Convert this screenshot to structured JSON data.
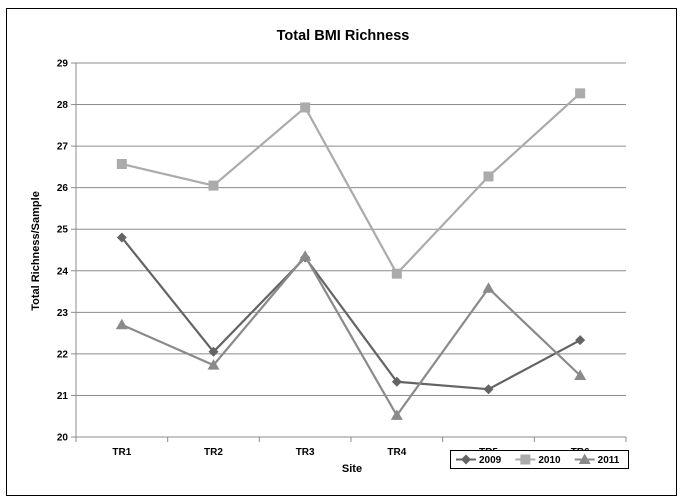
{
  "chart_data": {
    "type": "line",
    "title": "Total BMI Richness",
    "xlabel": "Site",
    "ylabel": "Total Richness/Sample",
    "categories": [
      "TR1",
      "TR2",
      "TR3",
      "TR4",
      "TR5",
      "TR6"
    ],
    "ylim": [
      20,
      29
    ],
    "yticks": [
      20,
      21,
      22,
      23,
      24,
      25,
      26,
      27,
      28,
      29
    ],
    "grid": "horizontal",
    "legend_position": "bottom-right",
    "series": [
      {
        "name": "2009",
        "marker": "diamond",
        "color": "#646464",
        "values": [
          24.8,
          22.05,
          24.32,
          21.33,
          21.15,
          22.33
        ]
      },
      {
        "name": "2010",
        "marker": "square",
        "color": "#ababab",
        "values": [
          26.57,
          26.05,
          27.93,
          23.93,
          26.27,
          28.27
        ]
      },
      {
        "name": "2011",
        "marker": "triangle",
        "color": "#8a8a8a",
        "values": [
          22.7,
          21.73,
          24.35,
          20.52,
          23.58,
          21.48
        ]
      }
    ]
  }
}
